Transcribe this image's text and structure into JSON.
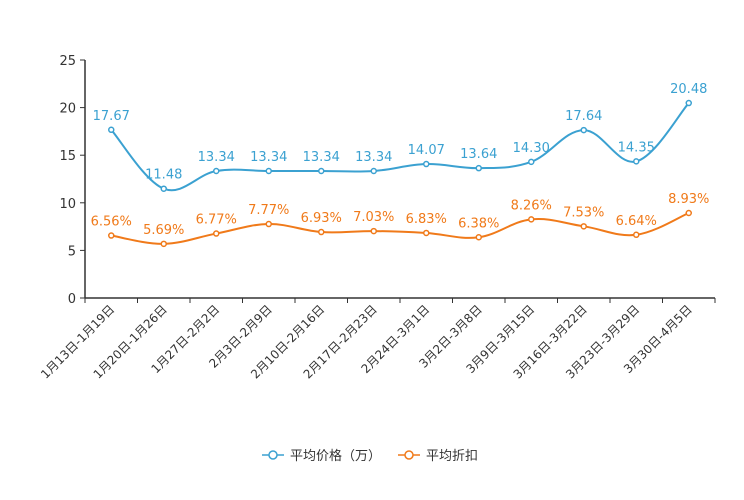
{
  "chart_data": {
    "type": "line",
    "title": "",
    "xlabel": "",
    "ylabel": "",
    "ylim": [
      0,
      25
    ],
    "yticks": [
      0,
      5,
      10,
      15,
      20,
      25
    ],
    "grid": false,
    "legend_position": "bottom-center",
    "categories": [
      "1月13日-1月19日",
      "1月20日-1月26日",
      "1月27日-2月2日",
      "2月3日-2月9日",
      "2月10日-2月16日",
      "2月17日-2月23日",
      "2月24日-3月1日",
      "3月2日-3月8日",
      "3月9日-3月15日",
      "3月16日-3月22日",
      "3月23日-3月29日",
      "3月30日-4月5日"
    ],
    "series": [
      {
        "name": "平均价格（万）",
        "color": "#3ba1d1",
        "values": [
          17.67,
          11.48,
          13.34,
          13.34,
          13.34,
          13.34,
          14.07,
          13.64,
          14.3,
          17.64,
          14.35,
          20.48
        ],
        "labels": [
          "17.67",
          "11.48",
          "13.34",
          "13.34",
          "13.34",
          "13.34",
          "14.07",
          "13.64",
          "14.30",
          "17.64",
          "14.35",
          "20.48"
        ]
      },
      {
        "name": "平均折扣",
        "color": "#f07a1a",
        "values": [
          6.56,
          5.69,
          6.77,
          7.77,
          6.93,
          7.03,
          6.83,
          6.38,
          8.26,
          7.53,
          6.64,
          8.93
        ],
        "labels": [
          "6.56%",
          "5.69%",
          "6.77%",
          "7.77%",
          "6.93%",
          "7.03%",
          "6.83%",
          "6.38%",
          "8.26%",
          "7.53%",
          "6.64%",
          "8.93%"
        ]
      }
    ]
  }
}
